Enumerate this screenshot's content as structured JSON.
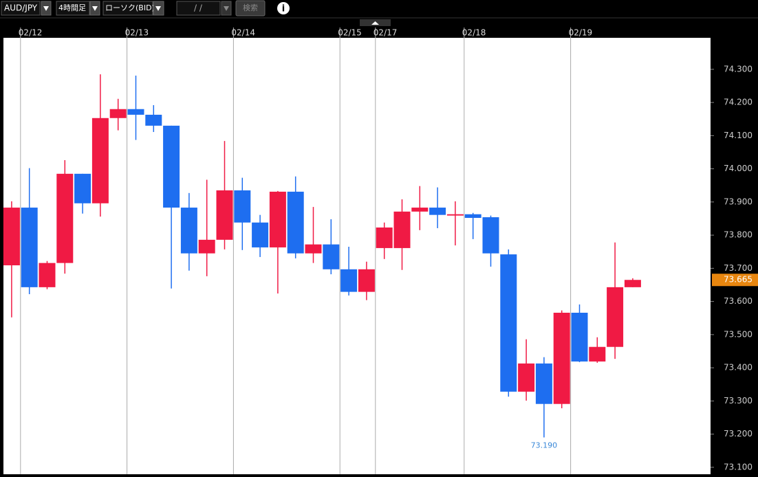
{
  "toolbar": {
    "pair": "AUD/JPY",
    "timeframe": "4時間足",
    "chart_kind": "ローソク(BID)",
    "date_input": "/   /",
    "search_button": "検索",
    "info_icon": "i"
  },
  "chart_data": {
    "type": "candlestick",
    "categories": [
      null,
      "02/12",
      null,
      null,
      null,
      null,
      null,
      "02/13",
      null,
      null,
      null,
      null,
      null,
      "02/14",
      null,
      null,
      null,
      null,
      null,
      "02/15",
      null,
      "02/17",
      null,
      null,
      null,
      null,
      "02/18",
      null,
      null,
      null,
      null,
      null,
      "02/19",
      null,
      null,
      null
    ],
    "open": [
      73.709,
      73.883,
      73.643,
      73.716,
      73.985,
      73.896,
      74.153,
      74.18,
      74.163,
      74.13,
      73.883,
      73.745,
      73.786,
      73.935,
      73.838,
      73.763,
      73.931,
      73.745,
      73.772,
      73.697,
      73.629,
      73.761,
      73.761,
      73.871,
      73.883,
      73.859,
      73.863,
      73.854,
      73.742,
      73.328,
      73.413,
      73.291,
      73.566,
      73.419,
      73.463,
      73.643
    ],
    "high": [
      73.902,
      74.002,
      73.722,
      74.026,
      73.985,
      74.285,
      74.211,
      74.281,
      74.192,
      74.13,
      73.927,
      73.967,
      74.084,
      73.973,
      73.861,
      73.933,
      73.977,
      73.885,
      73.848,
      73.765,
      73.72,
      73.838,
      73.908,
      73.948,
      73.944,
      73.902,
      73.867,
      73.859,
      73.757,
      73.486,
      73.432,
      73.573,
      73.591,
      73.492,
      73.778,
      73.67
    ],
    "low": [
      73.552,
      73.622,
      73.637,
      73.684,
      73.865,
      73.856,
      74.116,
      74.087,
      74.111,
      73.639,
      73.693,
      73.676,
      73.757,
      73.755,
      73.734,
      73.624,
      73.73,
      73.716,
      73.682,
      73.618,
      73.604,
      73.728,
      73.695,
      73.815,
      73.821,
      73.769,
      73.788,
      73.705,
      73.313,
      73.301,
      73.19,
      73.278,
      73.417,
      73.415,
      73.427,
      73.643
    ],
    "close": [
      73.883,
      73.643,
      73.716,
      73.985,
      73.896,
      74.153,
      74.18,
      74.163,
      74.13,
      73.883,
      73.745,
      73.786,
      73.935,
      73.838,
      73.763,
      73.931,
      73.745,
      73.772,
      73.697,
      73.629,
      73.697,
      73.823,
      73.871,
      73.883,
      73.861,
      73.863,
      73.852,
      73.745,
      73.328,
      73.413,
      73.291,
      73.566,
      73.419,
      73.463,
      73.643,
      73.665
    ],
    "up_color": "#f01a44",
    "down_color": "#1e6ef0",
    "ylim": [
      73.079,
      74.395
    ],
    "yticks": [
      {
        "value": 73.1,
        "label": "73.100"
      },
      {
        "value": 73.2,
        "label": "73.200"
      },
      {
        "value": 73.3,
        "label": "73.300"
      },
      {
        "value": 73.4,
        "label": "73.400"
      },
      {
        "value": 73.5,
        "label": "73.500"
      },
      {
        "value": 73.6,
        "label": "73.600"
      },
      {
        "value": 73.7,
        "label": "73.700"
      },
      {
        "value": 73.8,
        "label": "73.800"
      },
      {
        "value": 73.9,
        "label": "73.900"
      },
      {
        "value": 74.0,
        "label": "74.000"
      },
      {
        "value": 74.1,
        "label": "74.100"
      },
      {
        "value": 74.2,
        "label": "74.200"
      },
      {
        "value": 74.3,
        "label": "74.300"
      }
    ],
    "current_price": 73.665,
    "low_label": "73.190",
    "grid": true
  }
}
